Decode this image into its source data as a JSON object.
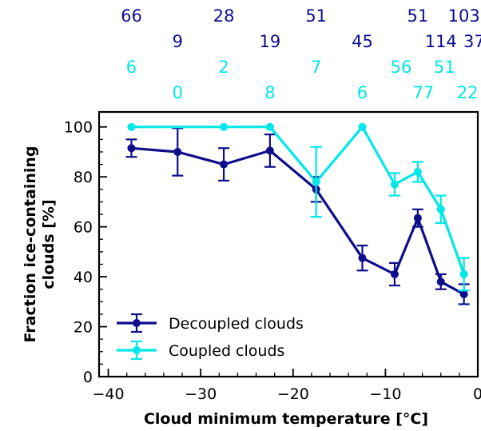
{
  "chart_data": {
    "type": "line",
    "xlabel": "Cloud minimum temperature [°C]",
    "ylabel": "Fraction ice-containing clouds [%]",
    "xlim": [
      -41,
      0
    ],
    "ylim": [
      0,
      106
    ],
    "xticks": [
      -40,
      -30,
      -20,
      -10,
      0
    ],
    "yticks": [
      0,
      20,
      40,
      60,
      80,
      100
    ],
    "legend_position": "lower-left",
    "grid": false,
    "series": [
      {
        "name": "Decoupled clouds",
        "color": "#0d0d8c",
        "points": [
          {
            "x": -37.5,
            "y": 91.5,
            "err": 3.5
          },
          {
            "x": -32.5,
            "y": 90,
            "err": 9.5
          },
          {
            "x": -27.5,
            "y": 85,
            "err": 6.5
          },
          {
            "x": -22.5,
            "y": 90.5,
            "err": 6.5
          },
          {
            "x": -17.5,
            "y": 75,
            "err": 5
          },
          {
            "x": -12.5,
            "y": 47.5,
            "err": 5
          },
          {
            "x": -9,
            "y": 41,
            "err": 4.5
          },
          {
            "x": -6.5,
            "y": 63.5,
            "err": 3.5
          },
          {
            "x": -4,
            "y": 38,
            "err": 3
          },
          {
            "x": -1.5,
            "y": 33,
            "err": 4
          }
        ]
      },
      {
        "name": "Coupled clouds",
        "color": "#00e8e8",
        "points": [
          {
            "x": -37.5,
            "y": 100,
            "err": 0
          },
          {
            "x": -27.5,
            "y": 100,
            "err": 0
          },
          {
            "x": -22.5,
            "y": 100,
            "err": 0
          },
          {
            "x": -17.5,
            "y": 78,
            "err": 14
          },
          {
            "x": -12.5,
            "y": 100,
            "err": 0
          },
          {
            "x": -9,
            "y": 77,
            "err": 4.5
          },
          {
            "x": -6.5,
            "y": 82,
            "err": 4
          },
          {
            "x": -4,
            "y": 67,
            "err": 5.5
          },
          {
            "x": -1.5,
            "y": 41,
            "err": 6.5
          }
        ]
      }
    ],
    "count_labels": [
      {
        "row": 0,
        "x": -37.5,
        "text": "66",
        "series": 0
      },
      {
        "row": 0,
        "x": -27.5,
        "text": "28",
        "series": 0
      },
      {
        "row": 0,
        "x": -17.5,
        "text": "51",
        "series": 0
      },
      {
        "row": 0,
        "x": -6.5,
        "text": "51",
        "series": 0
      },
      {
        "row": 0,
        "x": -1.5,
        "text": "103",
        "series": 0
      },
      {
        "row": 1,
        "x": -32.5,
        "text": "9",
        "series": 0
      },
      {
        "row": 1,
        "x": -22.5,
        "text": "19",
        "series": 0
      },
      {
        "row": 1,
        "x": -12.5,
        "text": "45",
        "series": 0
      },
      {
        "row": 1,
        "x": -4,
        "text": "114",
        "series": 0
      },
      {
        "row": 1,
        "x": -0.4,
        "text": "37",
        "series": 0
      },
      {
        "row": 2,
        "x": -37.5,
        "text": "6",
        "series": 1
      },
      {
        "row": 2,
        "x": -27.5,
        "text": "2",
        "series": 1
      },
      {
        "row": 2,
        "x": -17.5,
        "text": "7",
        "series": 1
      },
      {
        "row": 2,
        "x": -8.3,
        "text": "56",
        "series": 1
      },
      {
        "row": 2,
        "x": -3.6,
        "text": "51",
        "series": 1
      },
      {
        "row": 3,
        "x": -32.5,
        "text": "0",
        "series": 1
      },
      {
        "row": 3,
        "x": -22.5,
        "text": "8",
        "series": 1
      },
      {
        "row": 3,
        "x": -12.5,
        "text": "6",
        "series": 1
      },
      {
        "row": 3,
        "x": -5.9,
        "text": "77",
        "series": 1
      },
      {
        "row": 3,
        "x": -1.1,
        "text": "22",
        "series": 1
      }
    ]
  }
}
